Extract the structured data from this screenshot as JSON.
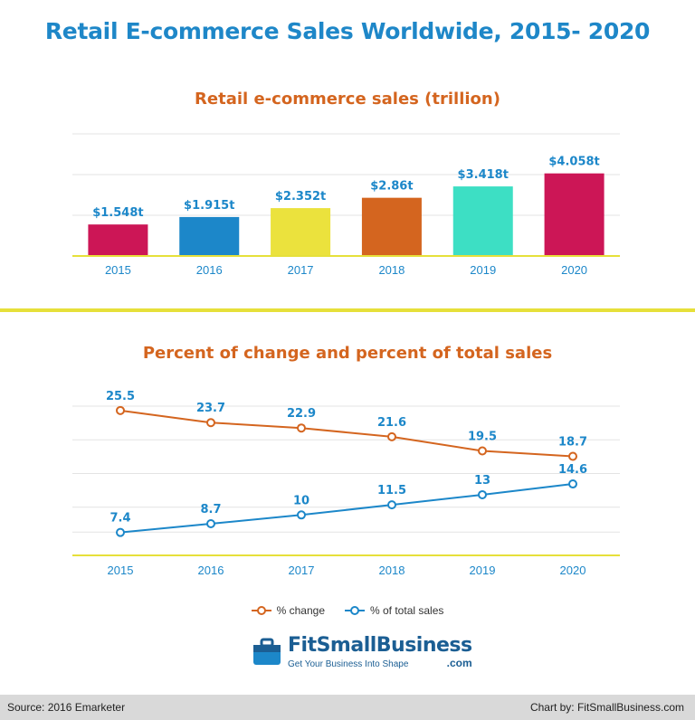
{
  "title": "Retail E-commerce Sales Worldwide, 2015- 2020",
  "chart_data": [
    {
      "type": "bar",
      "title": "Retail e-commerce sales (trillion)",
      "categories": [
        "2015",
        "2016",
        "2017",
        "2018",
        "2019",
        "2020"
      ],
      "values": [
        1.548,
        1.915,
        2.352,
        2.86,
        3.418,
        4.058
      ],
      "data_labels": [
        "$1.548t",
        "$1.915t",
        "$2.352t",
        "$2.86t",
        "$3.418t",
        "$4.058t"
      ],
      "bar_colors": [
        "#cc1656",
        "#1c87c9",
        "#ebe23d",
        "#d4651f",
        "#3ddfc4",
        "#cc1656"
      ],
      "ylim": [
        0,
        6
      ],
      "grid": true
    },
    {
      "type": "line",
      "title": "Percent of change and percent of total sales",
      "x": [
        "2015",
        "2016",
        "2017",
        "2018",
        "2019",
        "2020"
      ],
      "series": [
        {
          "name": "% change",
          "values": [
            25.5,
            23.7,
            22.9,
            21.6,
            19.5,
            18.7
          ],
          "color": "#d4651f"
        },
        {
          "name": "% of total sales",
          "values": [
            7.4,
            8.7,
            10,
            11.5,
            13,
            14.6
          ],
          "color": "#1c87c9"
        }
      ],
      "ylim": [
        4,
        30
      ],
      "grid": true,
      "legend": "bottom-center"
    }
  ],
  "logo": {
    "name": "FitSmallBusiness",
    "tagline": "Get Your Business Into Shape",
    "suffix": ".com"
  },
  "footer": {
    "source": "Source: 2016 Emarketer",
    "credit": "Chart by: FitSmallBusiness.com"
  },
  "colors": {
    "title": "#1e87c8",
    "subtitle": "#d4651f",
    "divider": "#e6e03a",
    "axis": "#e6e03a",
    "label": "#1c87c9",
    "grid": "#e3e3e3"
  }
}
